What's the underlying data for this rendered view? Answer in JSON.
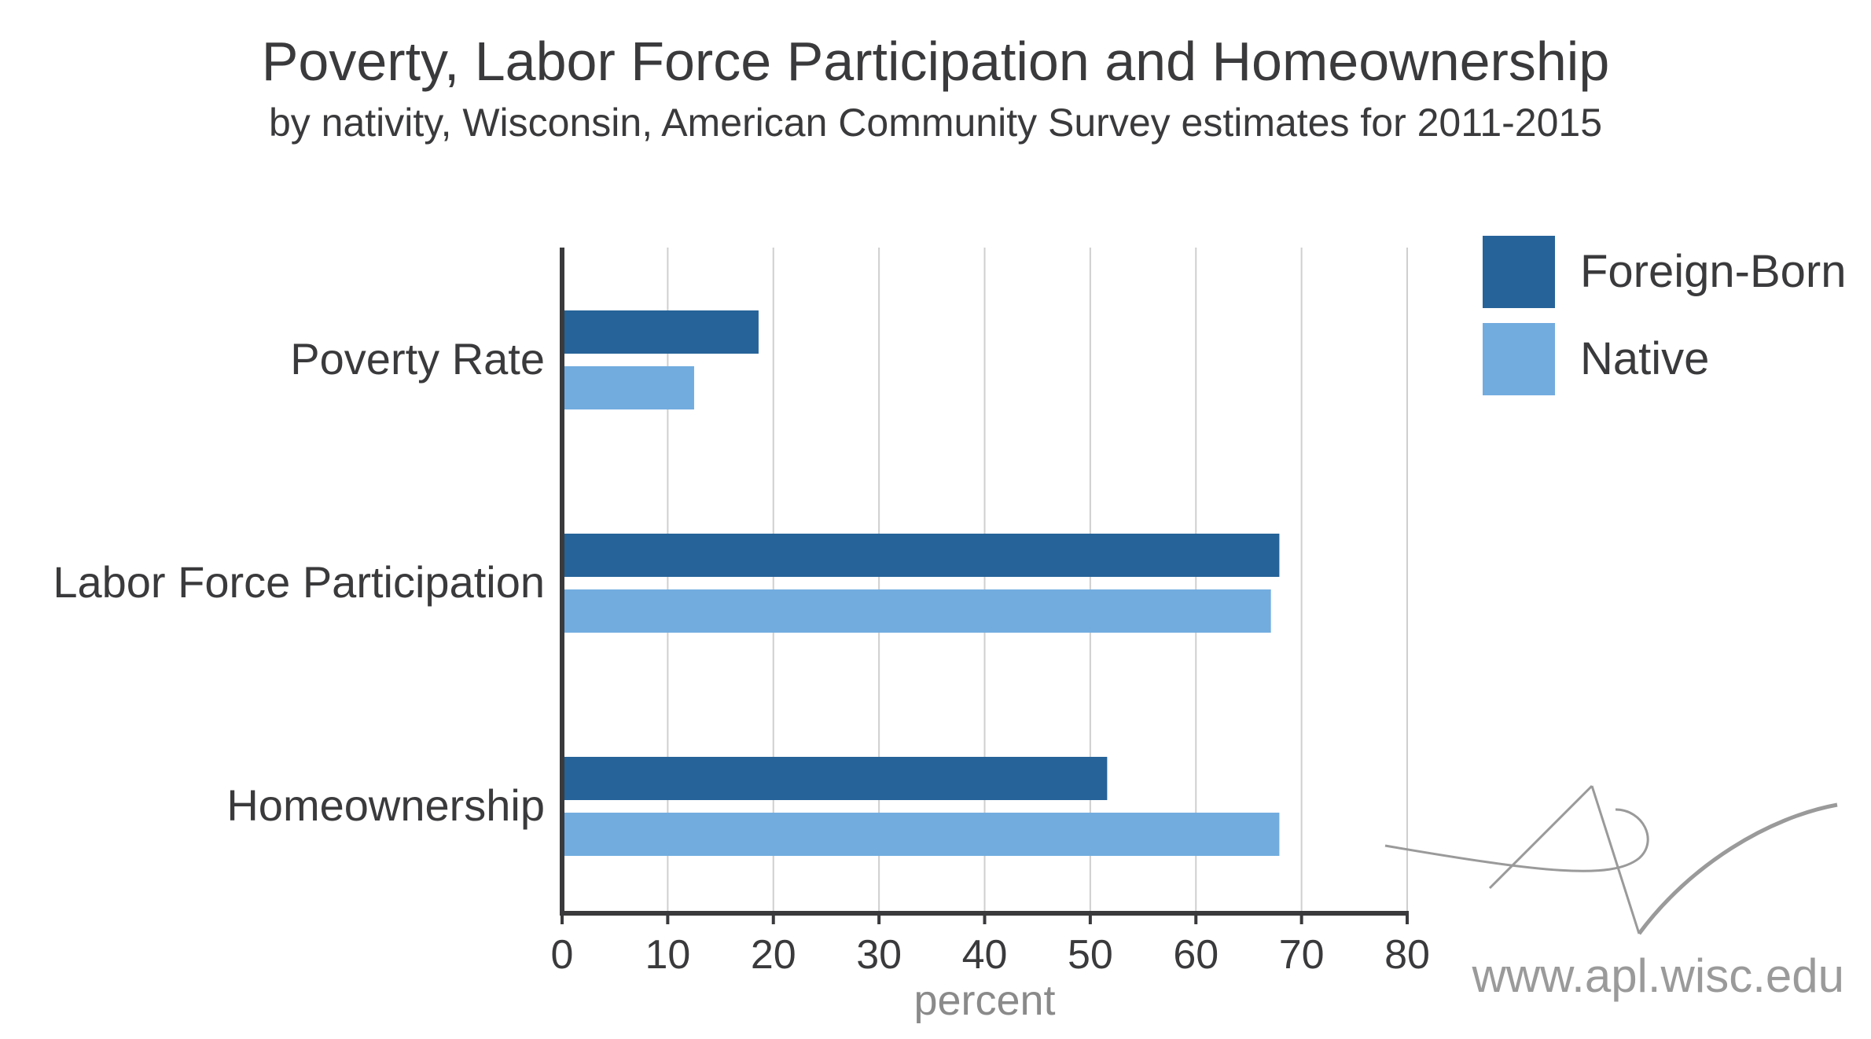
{
  "chart_data": {
    "type": "bar",
    "orientation": "horizontal",
    "title": "Poverty, Labor Force Participation and Homeownership",
    "subtitle": "by nativity, Wisconsin, American Community Survey estimates for 2011-2015",
    "categories": [
      "Poverty Rate",
      "Labor Force Participation",
      "Homeownership"
    ],
    "series": [
      {
        "name": "Foreign-Born",
        "color": "#266399",
        "values": [
          18.6,
          67.9,
          51.6
        ]
      },
      {
        "name": "Native",
        "color": "#72acdf",
        "values": [
          12.5,
          67.1,
          67.9
        ]
      }
    ],
    "xlabel": "percent",
    "xlim": [
      0,
      80
    ],
    "xticks": [
      0,
      10,
      20,
      30,
      40,
      50,
      60,
      70,
      80
    ],
    "grid": true,
    "legend_position": "top-right"
  },
  "watermark": {
    "text": "www.apl.wisc.edu"
  }
}
